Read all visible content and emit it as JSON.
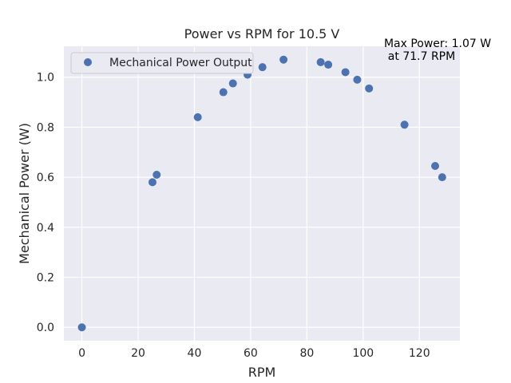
{
  "chart_data": {
    "type": "scatter",
    "title": "Power vs RPM for 10.5 V",
    "xlabel": "RPM",
    "ylabel": "Mechanical Power (W)",
    "xlim": [
      -6.4,
      134.4
    ],
    "ylim": [
      -0.0535,
      1.1235
    ],
    "xticks": [
      0,
      20,
      40,
      60,
      80,
      100,
      120
    ],
    "yticks": [
      0.0,
      0.2,
      0.4,
      0.6,
      0.8,
      1.0
    ],
    "grid": true,
    "legend_position": "upper-left",
    "series": [
      {
        "name": "Mechanical Power Output",
        "color": "#4c72b0",
        "x": [
          0,
          25.1,
          26.6,
          41.2,
          50.3,
          53.7,
          58.9,
          64.2,
          71.7,
          84.9,
          87.6,
          93.7,
          97.9,
          102.1,
          114.7,
          125.6,
          128.1
        ],
        "y": [
          0.0,
          0.58,
          0.61,
          0.84,
          0.94,
          0.975,
          1.01,
          1.04,
          1.07,
          1.06,
          1.05,
          1.02,
          0.99,
          0.955,
          0.81,
          0.645,
          0.6
        ]
      }
    ],
    "annotation": {
      "line1": "Max Power: 1.07 W",
      "line2": "at 71.7 RPM"
    }
  },
  "colors": {
    "plot_background": "#eaeaf2",
    "grid": "#ffffff",
    "text": "#262626"
  }
}
